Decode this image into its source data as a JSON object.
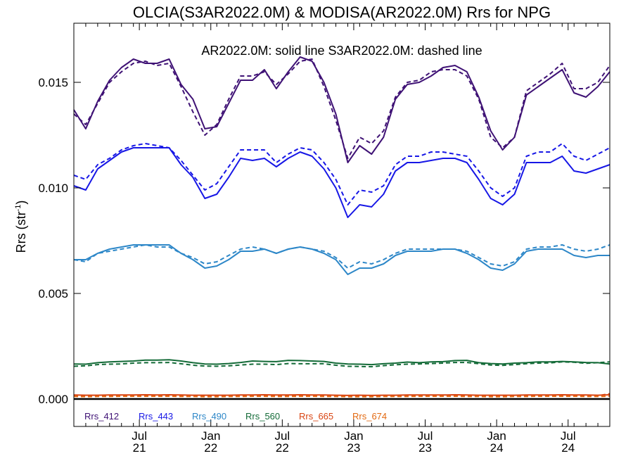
{
  "chart_data": {
    "type": "line",
    "title": "OLCIA(S3AR2022.0M) & MODISA(AR2022.0M)  Rrs for NPG",
    "subtitle": "AR2022.0M: solid line   S3AR2022.0M: dashed line",
    "ylabel": "Rrs (str",
    "ylabel_sup": "-1",
    "ylabel_close": ")",
    "xlim": [
      0,
      45
    ],
    "ylim": [
      -0.0013,
      0.0178
    ],
    "yticks": [
      {
        "value": 0.0,
        "label": "0.000"
      },
      {
        "value": 0.005,
        "label": "0.005"
      },
      {
        "value": 0.01,
        "label": "0.010"
      },
      {
        "value": 0.015,
        "label": "0.015"
      }
    ],
    "xticks": [
      {
        "pos": 5.5,
        "month": "Jul",
        "year": "21"
      },
      {
        "pos": 11.5,
        "month": "Jan",
        "year": "22"
      },
      {
        "pos": 17.5,
        "month": "Jul",
        "year": "22"
      },
      {
        "pos": 23.5,
        "month": "Jan",
        "year": "23"
      },
      {
        "pos": 29.5,
        "month": "Jul",
        "year": "23"
      },
      {
        "pos": 35.5,
        "month": "Jan",
        "year": "24"
      },
      {
        "pos": 41.5,
        "month": "Jul",
        "year": "24"
      }
    ],
    "zero_line": 0.0,
    "legend_position": "bottom-left",
    "x": [
      0,
      1,
      2,
      3,
      4,
      5,
      6,
      7,
      8,
      9,
      10,
      11,
      12,
      13,
      14,
      15,
      16,
      17,
      18,
      19,
      20,
      21,
      22,
      23,
      24,
      25,
      26,
      27,
      28,
      29,
      30,
      31,
      32,
      33,
      34,
      35,
      36,
      37,
      38,
      39,
      40,
      41,
      42,
      43,
      44,
      45
    ],
    "series": [
      {
        "name": "Rrs_412",
        "color": "#3f1275",
        "solid": [
          0.0137,
          0.0128,
          0.0141,
          0.0151,
          0.0157,
          0.0161,
          0.0159,
          0.0159,
          0.0161,
          0.0149,
          0.0142,
          0.0128,
          0.0129,
          0.014,
          0.0151,
          0.0151,
          0.0156,
          0.0147,
          0.0155,
          0.0162,
          0.016,
          0.015,
          0.0135,
          0.0112,
          0.012,
          0.0116,
          0.0124,
          0.0142,
          0.0149,
          0.015,
          0.0153,
          0.0157,
          0.0158,
          0.0155,
          0.0143,
          0.0127,
          0.0118,
          0.0124,
          0.0144,
          0.0148,
          0.0152,
          0.0156,
          0.0145,
          0.0143,
          0.0148,
          0.0155
        ],
        "dashed": [
          0.0135,
          0.013,
          0.014,
          0.015,
          0.0155,
          0.0159,
          0.016,
          0.0158,
          0.0159,
          0.0148,
          0.0136,
          0.0125,
          0.013,
          0.0142,
          0.0153,
          0.0153,
          0.0155,
          0.0149,
          0.0154,
          0.016,
          0.0161,
          0.0148,
          0.0132,
          0.0114,
          0.0124,
          0.0121,
          0.0127,
          0.0143,
          0.015,
          0.0151,
          0.0155,
          0.0156,
          0.0156,
          0.0153,
          0.0142,
          0.0124,
          0.0119,
          0.0124,
          0.0146,
          0.015,
          0.0154,
          0.0159,
          0.0147,
          0.0147,
          0.015,
          0.0158
        ]
      },
      {
        "name": "Rrs_443",
        "color": "#1717e6",
        "solid": [
          0.0101,
          0.0099,
          0.0109,
          0.0113,
          0.0117,
          0.0119,
          0.0119,
          0.0119,
          0.0119,
          0.0111,
          0.0105,
          0.0095,
          0.0097,
          0.0105,
          0.0114,
          0.0113,
          0.0114,
          0.011,
          0.0114,
          0.0117,
          0.0115,
          0.0109,
          0.01,
          0.0086,
          0.0092,
          0.0091,
          0.0097,
          0.0108,
          0.0112,
          0.0112,
          0.0113,
          0.0114,
          0.0114,
          0.0112,
          0.0104,
          0.0095,
          0.0092,
          0.0097,
          0.0112,
          0.0112,
          0.0112,
          0.0115,
          0.0108,
          0.0107,
          0.0109,
          0.0111
        ],
        "dashed": [
          0.0106,
          0.0104,
          0.0111,
          0.0114,
          0.0118,
          0.012,
          0.0121,
          0.012,
          0.0119,
          0.0113,
          0.0106,
          0.0099,
          0.0102,
          0.011,
          0.0118,
          0.0118,
          0.0118,
          0.0112,
          0.0116,
          0.0119,
          0.0118,
          0.0112,
          0.0104,
          0.0092,
          0.0099,
          0.0098,
          0.0101,
          0.0111,
          0.0115,
          0.0115,
          0.0117,
          0.0117,
          0.0116,
          0.0115,
          0.0108,
          0.01,
          0.0096,
          0.01,
          0.0115,
          0.0117,
          0.0117,
          0.0121,
          0.0115,
          0.0113,
          0.0116,
          0.0119
        ]
      },
      {
        "name": "Rrs_490",
        "color": "#2d87c8",
        "solid": [
          0.0066,
          0.0066,
          0.0069,
          0.0071,
          0.0072,
          0.0073,
          0.0073,
          0.0073,
          0.0073,
          0.0069,
          0.0066,
          0.0062,
          0.0063,
          0.0066,
          0.007,
          0.007,
          0.0071,
          0.0069,
          0.0071,
          0.0072,
          0.0071,
          0.0069,
          0.0066,
          0.0059,
          0.0062,
          0.0062,
          0.0064,
          0.0068,
          0.007,
          0.007,
          0.007,
          0.0071,
          0.0071,
          0.0069,
          0.0066,
          0.0062,
          0.0061,
          0.0064,
          0.007,
          0.0071,
          0.0071,
          0.0071,
          0.0068,
          0.0067,
          0.0068,
          0.0068
        ],
        "dashed": [
          0.0066,
          0.0065,
          0.0069,
          0.007,
          0.0071,
          0.0072,
          0.0073,
          0.0072,
          0.0072,
          0.0069,
          0.0067,
          0.0064,
          0.0065,
          0.0068,
          0.0071,
          0.0072,
          0.0071,
          0.0069,
          0.0071,
          0.0072,
          0.0071,
          0.007,
          0.0067,
          0.0062,
          0.0065,
          0.0064,
          0.0066,
          0.0069,
          0.0071,
          0.0071,
          0.0071,
          0.0071,
          0.0071,
          0.007,
          0.0067,
          0.0064,
          0.0063,
          0.0065,
          0.0071,
          0.0072,
          0.0072,
          0.0073,
          0.0071,
          0.007,
          0.0071,
          0.0073
        ]
      },
      {
        "name": "Rrs_560",
        "color": "#146b38",
        "solid": [
          0.00166,
          0.00165,
          0.00172,
          0.00176,
          0.00178,
          0.0018,
          0.00184,
          0.00184,
          0.00186,
          0.0018,
          0.00172,
          0.00166,
          0.00165,
          0.00168,
          0.00173,
          0.0018,
          0.00178,
          0.00177,
          0.00183,
          0.00182,
          0.0018,
          0.00178,
          0.0017,
          0.00166,
          0.00165,
          0.00163,
          0.00167,
          0.0017,
          0.00175,
          0.00172,
          0.00176,
          0.00177,
          0.00182,
          0.00183,
          0.00172,
          0.00168,
          0.00166,
          0.0017,
          0.00172,
          0.00176,
          0.00176,
          0.00178,
          0.00176,
          0.00173,
          0.00172,
          0.00166
        ],
        "dashed": [
          0.00155,
          0.00157,
          0.00163,
          0.00165,
          0.00166,
          0.0017,
          0.00172,
          0.00172,
          0.00173,
          0.00167,
          0.0016,
          0.00156,
          0.00155,
          0.00157,
          0.00161,
          0.00165,
          0.00165,
          0.00163,
          0.00168,
          0.00167,
          0.00167,
          0.00167,
          0.0016,
          0.00155,
          0.00154,
          0.00153,
          0.00158,
          0.00162,
          0.00165,
          0.00166,
          0.00168,
          0.0017,
          0.00173,
          0.00173,
          0.00167,
          0.00161,
          0.00159,
          0.00163,
          0.00167,
          0.0017,
          0.00171,
          0.00176,
          0.00174,
          0.00169,
          0.00172,
          0.00176
        ]
      },
      {
        "name": "Rrs_665",
        "color": "#d94412",
        "solid": [
          0.00019,
          0.00018,
          0.00018,
          0.00019,
          0.00019,
          0.00019,
          0.0002,
          0.00019,
          0.0002,
          0.00019,
          0.00018,
          0.00018,
          0.00018,
          0.00018,
          0.00019,
          0.00019,
          0.0002,
          0.00019,
          0.00019,
          0.0002,
          0.00019,
          0.00019,
          0.00018,
          0.00017,
          0.00018,
          0.00017,
          0.00018,
          0.00018,
          0.00019,
          0.00019,
          0.00019,
          0.00019,
          0.0002,
          0.00019,
          0.00018,
          0.00018,
          0.00018,
          0.00018,
          0.00019,
          0.00019,
          0.00019,
          0.0002,
          0.00019,
          0.00019,
          0.00018,
          0.0002
        ],
        "dashed": [
          0.00015,
          0.00014,
          0.00015,
          0.00016,
          0.00016,
          0.00016,
          0.00017,
          0.00016,
          0.00017,
          0.00016,
          0.00015,
          0.00015,
          0.00015,
          0.00015,
          0.00016,
          0.00016,
          0.00017,
          0.00016,
          0.00016,
          0.00017,
          0.00016,
          0.00016,
          0.00015,
          0.00014,
          0.00015,
          0.00014,
          0.00015,
          0.00015,
          0.00016,
          0.00016,
          0.00016,
          0.00016,
          0.00017,
          0.00016,
          0.00015,
          0.00015,
          0.00015,
          0.00015,
          0.00016,
          0.00016,
          0.00016,
          0.00017,
          0.00016,
          0.00016,
          0.00016,
          0.00025
        ]
      },
      {
        "name": "Rrs_674",
        "color": "#e36a12",
        "solid": [],
        "dashed": [
          0.00012,
          0.00011,
          0.00012,
          0.00012,
          0.00013,
          0.00013,
          0.00013,
          0.00013,
          0.00013,
          0.00012,
          0.00012,
          0.00011,
          0.00011,
          0.00012,
          0.00012,
          0.00013,
          0.00013,
          0.00012,
          0.00012,
          0.00013,
          0.00013,
          0.00012,
          0.00012,
          0.00011,
          0.00011,
          0.00011,
          0.00012,
          0.00012,
          0.00012,
          0.00013,
          0.00013,
          0.00013,
          0.00013,
          0.00012,
          0.00012,
          0.00011,
          0.00011,
          0.00012,
          0.00012,
          0.00013,
          0.00013,
          0.00013,
          0.00013,
          0.00012,
          0.00012,
          0.00013
        ]
      }
    ]
  }
}
